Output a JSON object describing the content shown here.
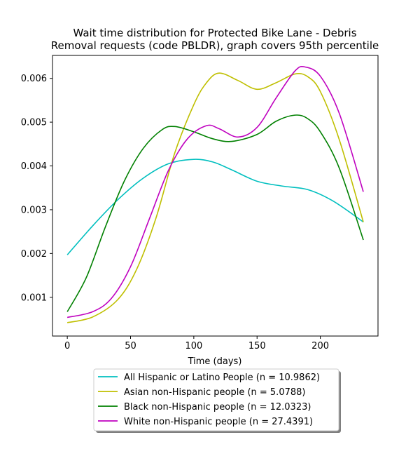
{
  "chart_data": {
    "type": "line",
    "title_lines": [
      "Wait time distribution  for Protected Bike Lane - Debris",
      "Removal  requests (code PBLDR), graph covers 95th percentile"
    ],
    "xlabel": "Time (days)",
    "ylabel": "",
    "xlim": [
      -11.7,
      245.6
    ],
    "ylim": [
      0.000115,
      0.006524
    ],
    "xticks": [
      0,
      50,
      100,
      150,
      200
    ],
    "yticks": [
      0.001,
      0.002,
      0.003,
      0.004,
      0.005,
      0.006
    ],
    "ytick_labels": [
      "0.001",
      "0.002",
      "0.003",
      "0.004",
      "0.005",
      "0.006"
    ],
    "grid": false,
    "legend_position": "below-center",
    "series": [
      {
        "name": "All Hispanic or Latino People (n = 10.9862)",
        "color": "#00bfbf",
        "x": [
          0,
          20,
          40,
          60,
          80,
          100,
          115,
          130,
          150,
          170,
          190,
          210,
          234
        ],
        "y": [
          0.00197,
          0.00263,
          0.00323,
          0.00372,
          0.00405,
          0.00415,
          0.00409,
          0.00391,
          0.00365,
          0.00354,
          0.00346,
          0.0032,
          0.00272
        ]
      },
      {
        "name": "Asian non-Hispanic people (n = 5.0788)",
        "color": "#bfbf00",
        "x": [
          0,
          20,
          40,
          55,
          70,
          85,
          100,
          110,
          120,
          135,
          150,
          165,
          180,
          190,
          200,
          215,
          234
        ],
        "y": [
          0.00042,
          0.00055,
          0.00095,
          0.00165,
          0.0028,
          0.0043,
          0.0054,
          0.0059,
          0.00612,
          0.00595,
          0.00575,
          0.0059,
          0.0061,
          0.00604,
          0.0057,
          0.0046,
          0.00272
        ]
      },
      {
        "name": "Black non-Hispanic people (n = 12.0323)",
        "color": "#008000",
        "x": [
          0,
          15,
          30,
          45,
          60,
          75,
          85,
          100,
          115,
          130,
          150,
          165,
          180,
          190,
          200,
          215,
          234
        ],
        "y": [
          0.00067,
          0.00145,
          0.0026,
          0.00365,
          0.0044,
          0.00483,
          0.0049,
          0.00478,
          0.00462,
          0.00456,
          0.00472,
          0.00502,
          0.00516,
          0.00508,
          0.00478,
          0.00395,
          0.00231
        ]
      },
      {
        "name": "White non-Hispanic people (n = 27.4391)",
        "color": "#bf00bf",
        "x": [
          0,
          20,
          35,
          50,
          65,
          80,
          95,
          110,
          120,
          135,
          150,
          165,
          180,
          188,
          200,
          215,
          234
        ],
        "y": [
          0.00054,
          0.00067,
          0.00098,
          0.0017,
          0.0028,
          0.0039,
          0.00462,
          0.00492,
          0.00485,
          0.00466,
          0.00488,
          0.00555,
          0.00617,
          0.00626,
          0.00605,
          0.0052,
          0.00341
        ]
      }
    ]
  }
}
